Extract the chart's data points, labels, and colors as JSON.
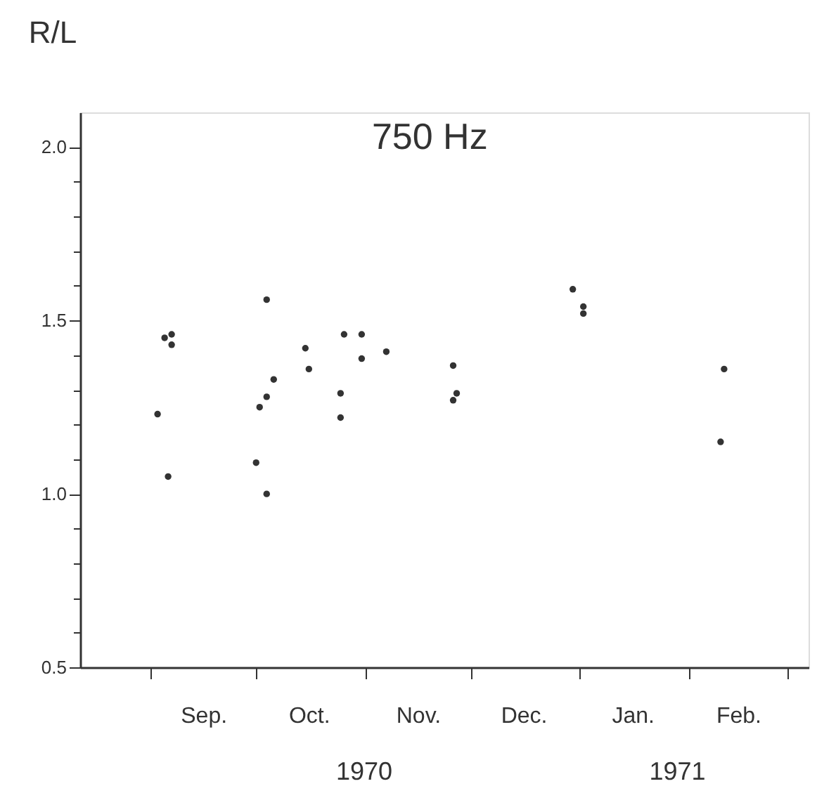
{
  "chart_data": {
    "type": "scatter",
    "title": "750 Hz",
    "ylabel": "R/L",
    "annotations": [
      "1970",
      "1971"
    ],
    "series": [
      {
        "color": "#333333",
        "x": [
          "1970-09-03",
          "1970-09-05",
          "1970-09-07",
          "1970-09-07",
          "1970-09-06",
          "1970-10-02",
          "1970-10-04",
          "1970-10-06",
          "1970-10-04",
          "1970-10-01",
          "1970-10-04",
          "1970-10-15",
          "1970-10-16",
          "1970-10-26",
          "1970-10-25",
          "1970-10-25",
          "1970-10-31",
          "1970-10-31",
          "1970-11-07",
          "1970-11-26",
          "1970-11-27",
          "1970-11-26",
          "1970-12-30",
          "1971-01-02",
          "1971-01-02",
          "1971-02-11",
          "1971-02-10"
        ],
        "values": [
          1.23,
          1.45,
          1.46,
          1.43,
          1.05,
          1.25,
          1.28,
          1.33,
          1.56,
          1.09,
          1.0,
          1.42,
          1.36,
          1.46,
          1.29,
          1.22,
          1.46,
          1.39,
          1.41,
          1.37,
          1.29,
          1.27,
          1.59,
          1.54,
          1.52,
          1.36,
          1.15
        ]
      }
    ],
    "xlim": [
      "1970-08-12",
      "1971-03-07"
    ],
    "xticks": [
      {
        "value": "1970-09-01",
        "label": null
      },
      {
        "value": "1970-09-16",
        "label": "Sep."
      },
      {
        "value": "1970-10-01",
        "label": null
      },
      {
        "value": "1970-10-16",
        "label": "Oct."
      },
      {
        "value": "1970-11-01",
        "label": null
      },
      {
        "value": "1970-11-16",
        "label": "Nov."
      },
      {
        "value": "1970-12-01",
        "label": null
      },
      {
        "value": "1970-12-16",
        "label": "Dec."
      },
      {
        "value": "1971-01-01",
        "label": null
      },
      {
        "value": "1971-01-16",
        "label": "Jan."
      },
      {
        "value": "1971-02-01",
        "label": null
      },
      {
        "value": "1971-02-15",
        "label": "Feb."
      },
      {
        "value": "1971-03-01",
        "label": null
      }
    ],
    "ylim": [
      0.5,
      2.1
    ],
    "yticks": [
      0.5,
      {
        "value": 0.6,
        "label": null
      },
      {
        "value": 0.7,
        "label": null
      },
      {
        "value": 0.8,
        "label": null
      },
      {
        "value": 0.9,
        "label": null
      },
      {
        "value": 1.0,
        "label": "1.0"
      },
      {
        "value": 1.1,
        "label": null
      },
      {
        "value": 1.2,
        "label": null
      },
      {
        "value": 1.3,
        "label": null
      },
      {
        "value": 1.4,
        "label": null
      },
      1.5,
      {
        "value": 1.6,
        "label": null
      },
      {
        "value": 1.7,
        "label": null
      },
      {
        "value": 1.8,
        "label": null
      },
      {
        "value": 1.9,
        "label": null
      },
      {
        "value": 2.0,
        "label": "2.0"
      }
    ],
    "grid": false,
    "marker": "circle"
  }
}
